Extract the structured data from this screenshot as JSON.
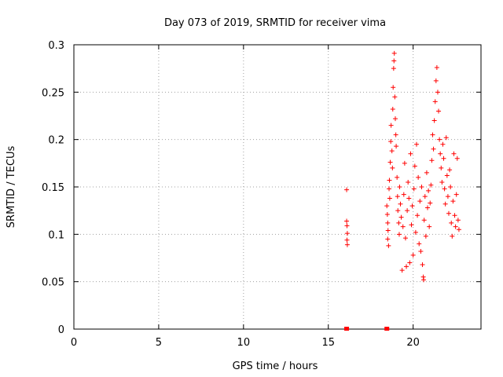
{
  "chart_data": {
    "type": "scatter",
    "title": "Day 073 of 2019, SRMTID for receiver vima",
    "xlabel": "GPS time / hours",
    "ylabel": "SRMTID / TECUs",
    "xlim": [
      0,
      24
    ],
    "ylim": [
      0,
      0.3
    ],
    "grid": true,
    "x_ticks": [
      0,
      5,
      10,
      15,
      20
    ],
    "x_tick_labels": [
      "0",
      "5",
      "10",
      "15",
      "20"
    ],
    "y_ticks": [
      0,
      0.05,
      0.1,
      0.15,
      0.2,
      0.25,
      0.3
    ],
    "y_tick_labels": [
      "0",
      "0.05",
      "0.1",
      "0.15",
      "0.2",
      "0.25",
      "0.3"
    ],
    "marker": "+",
    "color": "#ff0000",
    "zero_points": [
      {
        "x": 16.08,
        "y": 0
      },
      {
        "x": 18.45,
        "y": 0
      }
    ],
    "series": [
      {
        "name": "SRMTID",
        "points": [
          {
            "x": 16.08,
            "y": 0.147
          },
          {
            "x": 16.08,
            "y": 0.114
          },
          {
            "x": 16.1,
            "y": 0.109
          },
          {
            "x": 16.12,
            "y": 0.101
          },
          {
            "x": 16.1,
            "y": 0.094
          },
          {
            "x": 16.12,
            "y": 0.089
          },
          {
            "x": 18.45,
            "y": 0.13
          },
          {
            "x": 18.48,
            "y": 0.121
          },
          {
            "x": 18.5,
            "y": 0.112
          },
          {
            "x": 18.52,
            "y": 0.104
          },
          {
            "x": 18.5,
            "y": 0.095
          },
          {
            "x": 18.55,
            "y": 0.088
          },
          {
            "x": 18.58,
            "y": 0.148
          },
          {
            "x": 18.6,
            "y": 0.157
          },
          {
            "x": 18.62,
            "y": 0.138
          },
          {
            "x": 18.65,
            "y": 0.176
          },
          {
            "x": 18.68,
            "y": 0.198
          },
          {
            "x": 18.7,
            "y": 0.215
          },
          {
            "x": 18.75,
            "y": 0.188
          },
          {
            "x": 18.78,
            "y": 0.17
          },
          {
            "x": 18.8,
            "y": 0.232
          },
          {
            "x": 18.82,
            "y": 0.255
          },
          {
            "x": 18.85,
            "y": 0.275
          },
          {
            "x": 18.87,
            "y": 0.283
          },
          {
            "x": 18.89,
            "y": 0.291
          },
          {
            "x": 18.92,
            "y": 0.245
          },
          {
            "x": 18.95,
            "y": 0.222
          },
          {
            "x": 18.98,
            "y": 0.205
          },
          {
            "x": 19.0,
            "y": 0.193
          },
          {
            "x": 19.05,
            "y": 0.16
          },
          {
            "x": 19.08,
            "y": 0.14
          },
          {
            "x": 19.1,
            "y": 0.125
          },
          {
            "x": 19.15,
            "y": 0.112
          },
          {
            "x": 19.18,
            "y": 0.1
          },
          {
            "x": 19.2,
            "y": 0.15
          },
          {
            "x": 19.25,
            "y": 0.132
          },
          {
            "x": 19.3,
            "y": 0.118
          },
          {
            "x": 19.35,
            "y": 0.062
          },
          {
            "x": 19.4,
            "y": 0.108
          },
          {
            "x": 19.45,
            "y": 0.142
          },
          {
            "x": 19.5,
            "y": 0.175
          },
          {
            "x": 19.55,
            "y": 0.096
          },
          {
            "x": 19.6,
            "y": 0.066
          },
          {
            "x": 19.65,
            "y": 0.125
          },
          {
            "x": 19.7,
            "y": 0.155
          },
          {
            "x": 19.75,
            "y": 0.138
          },
          {
            "x": 19.8,
            "y": 0.07
          },
          {
            "x": 19.85,
            "y": 0.185
          },
          {
            "x": 19.9,
            "y": 0.11
          },
          {
            "x": 19.95,
            "y": 0.13
          },
          {
            "x": 20.0,
            "y": 0.078
          },
          {
            "x": 20.05,
            "y": 0.148
          },
          {
            "x": 20.1,
            "y": 0.172
          },
          {
            "x": 20.15,
            "y": 0.102
          },
          {
            "x": 20.2,
            "y": 0.195
          },
          {
            "x": 20.25,
            "y": 0.12
          },
          {
            "x": 20.3,
            "y": 0.16
          },
          {
            "x": 20.35,
            "y": 0.09
          },
          {
            "x": 20.4,
            "y": 0.135
          },
          {
            "x": 20.45,
            "y": 0.082
          },
          {
            "x": 20.5,
            "y": 0.15
          },
          {
            "x": 20.55,
            "y": 0.068
          },
          {
            "x": 20.6,
            "y": 0.055
          },
          {
            "x": 20.62,
            "y": 0.052
          },
          {
            "x": 20.65,
            "y": 0.115
          },
          {
            "x": 20.7,
            "y": 0.14
          },
          {
            "x": 20.75,
            "y": 0.098
          },
          {
            "x": 20.8,
            "y": 0.165
          },
          {
            "x": 20.85,
            "y": 0.128
          },
          {
            "x": 20.9,
            "y": 0.146
          },
          {
            "x": 20.95,
            "y": 0.108
          },
          {
            "x": 21.0,
            "y": 0.133
          },
          {
            "x": 21.05,
            "y": 0.152
          },
          {
            "x": 21.1,
            "y": 0.178
          },
          {
            "x": 21.15,
            "y": 0.205
          },
          {
            "x": 21.2,
            "y": 0.19
          },
          {
            "x": 21.25,
            "y": 0.22
          },
          {
            "x": 21.3,
            "y": 0.24
          },
          {
            "x": 21.35,
            "y": 0.262
          },
          {
            "x": 21.4,
            "y": 0.276
          },
          {
            "x": 21.45,
            "y": 0.25
          },
          {
            "x": 21.5,
            "y": 0.23
          },
          {
            "x": 21.55,
            "y": 0.2
          },
          {
            "x": 21.6,
            "y": 0.185
          },
          {
            "x": 21.65,
            "y": 0.17
          },
          {
            "x": 21.7,
            "y": 0.155
          },
          {
            "x": 21.75,
            "y": 0.195
          },
          {
            "x": 21.8,
            "y": 0.18
          },
          {
            "x": 21.85,
            "y": 0.148
          },
          {
            "x": 21.9,
            "y": 0.132
          },
          {
            "x": 21.95,
            "y": 0.202
          },
          {
            "x": 22.0,
            "y": 0.162
          },
          {
            "x": 22.05,
            "y": 0.14
          },
          {
            "x": 22.1,
            "y": 0.122
          },
          {
            "x": 22.15,
            "y": 0.168
          },
          {
            "x": 22.2,
            "y": 0.15
          },
          {
            "x": 22.25,
            "y": 0.112
          },
          {
            "x": 22.3,
            "y": 0.098
          },
          {
            "x": 22.35,
            "y": 0.135
          },
          {
            "x": 22.4,
            "y": 0.185
          },
          {
            "x": 22.45,
            "y": 0.12
          },
          {
            "x": 22.5,
            "y": 0.108
          },
          {
            "x": 22.55,
            "y": 0.142
          },
          {
            "x": 22.6,
            "y": 0.18
          },
          {
            "x": 22.65,
            "y": 0.115
          },
          {
            "x": 22.7,
            "y": 0.105
          }
        ]
      }
    ]
  }
}
